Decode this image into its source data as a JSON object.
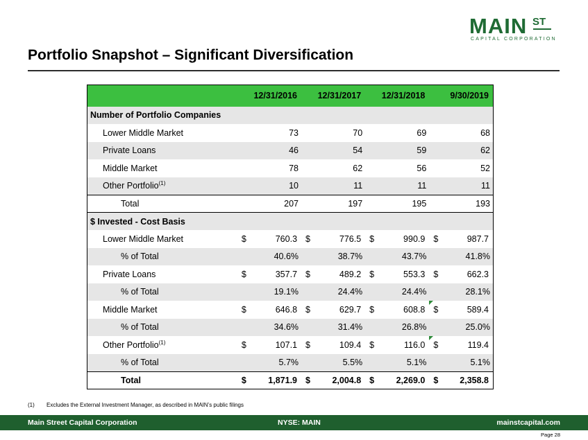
{
  "logo": {
    "main": "MAIN",
    "st": "ST",
    "sub": "CAPITAL CORPORATION"
  },
  "title": "Portfolio Snapshot – Significant Diversification",
  "table": {
    "headers": [
      "12/31/2016",
      "12/31/2017",
      "12/31/2018",
      "9/30/2019"
    ],
    "section1": "Number of Portfolio Companies",
    "section2": "$ Invested - Cost Basis",
    "currency": "$",
    "rows_count": [
      {
        "label": "Lower Middle Market",
        "values": [
          "73",
          "70",
          "69",
          "68"
        ]
      },
      {
        "label": "Private Loans",
        "values": [
          "46",
          "54",
          "59",
          "62"
        ]
      },
      {
        "label": "Middle Market",
        "values": [
          "78",
          "62",
          "56",
          "52"
        ]
      },
      {
        "label": "Other Portfolio",
        "sup": "(1)",
        "values": [
          "10",
          "11",
          "11",
          "11"
        ]
      },
      {
        "label": "Total",
        "values": [
          "207",
          "197",
          "195",
          "193"
        ]
      }
    ],
    "rows_invested": [
      {
        "label": "Lower Middle Market",
        "values": [
          "760.3",
          "776.5",
          "990.9",
          "987.7"
        ]
      },
      {
        "label": "% of Total",
        "values": [
          "40.6%",
          "38.7%",
          "43.7%",
          "41.8%"
        ]
      },
      {
        "label": "Private Loans",
        "values": [
          "357.7",
          "489.2",
          "553.3",
          "662.3"
        ]
      },
      {
        "label": "% of Total",
        "values": [
          "19.1%",
          "24.4%",
          "24.4%",
          "28.1%"
        ]
      },
      {
        "label": "Middle Market",
        "values": [
          "646.8",
          "629.7",
          "608.8",
          "589.4"
        ]
      },
      {
        "label": "% of Total",
        "values": [
          "34.6%",
          "31.4%",
          "26.8%",
          "25.0%"
        ]
      },
      {
        "label": "Other Portfolio",
        "sup": "(1)",
        "values": [
          "107.1",
          "109.4",
          "116.0",
          "119.4"
        ]
      },
      {
        "label": "% of Total",
        "values": [
          "5.7%",
          "5.5%",
          "5.1%",
          "5.1%"
        ]
      },
      {
        "label": "Total",
        "values": [
          "1,871.9",
          "2,004.8",
          "2,269.0",
          "2,358.8"
        ]
      }
    ]
  },
  "footnote": {
    "num": "(1)",
    "text": "Excludes the External Investment Manager, as described in MAIN’s public filings"
  },
  "footer": {
    "company": "Main Street Capital Corporation",
    "ticker": "NYSE: MAIN",
    "website": "mainstcapital.com"
  },
  "page_label": "Page 28",
  "colors": {
    "header_green": "#3cbf40",
    "brand_green": "#1f6b34",
    "footer_green": "#1f5f2e",
    "row_shade": "#e6e6e6"
  }
}
